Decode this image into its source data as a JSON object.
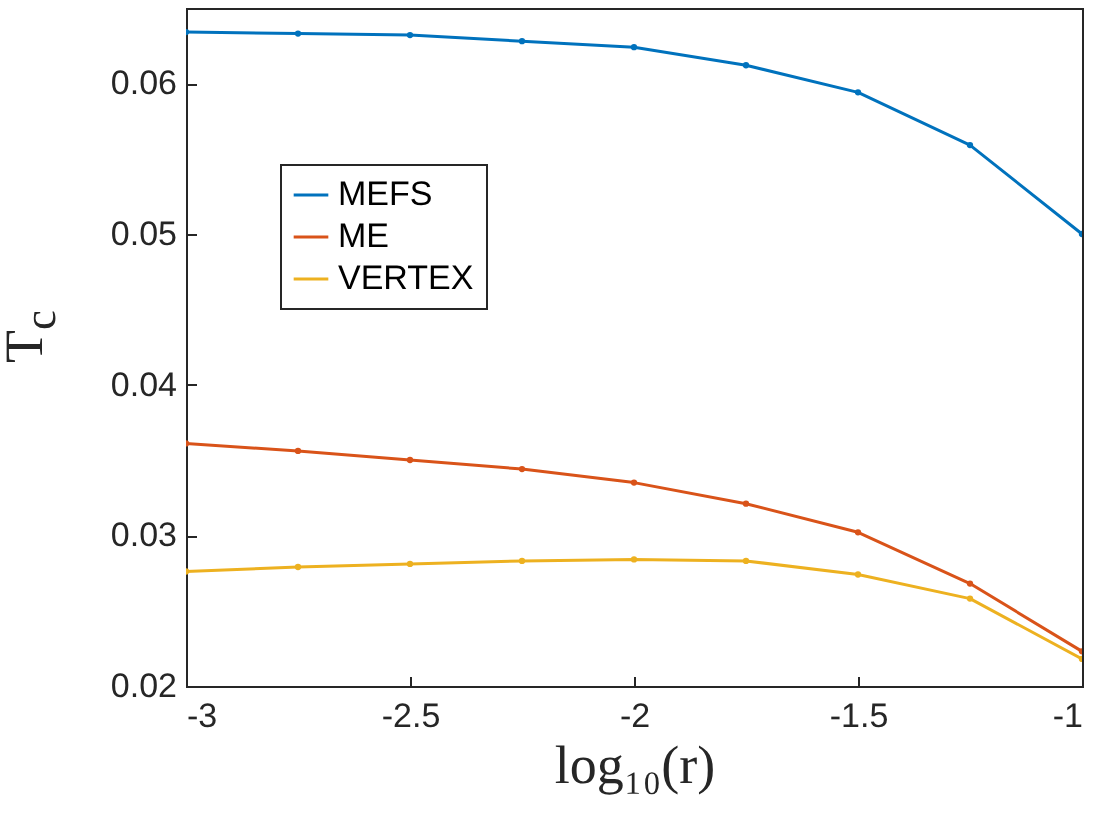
{
  "chart_data": {
    "type": "line",
    "xlabel": "log₁₀(r)",
    "ylabel": "T$_{c}$",
    "x": [
      -3,
      -2.75,
      -2.5,
      -2.25,
      -2,
      -1.75,
      -1.5,
      -1.25,
      -1
    ],
    "xlim": [
      -3,
      -1
    ],
    "xticks": [
      -3,
      -2.5,
      -2,
      -1.5,
      -1
    ],
    "ylim": [
      0.02,
      0.065
    ],
    "yticks": [
      0.02,
      0.03,
      0.04,
      0.05,
      0.06
    ],
    "series": [
      {
        "name": "MEFS",
        "color": "#0072bd",
        "values": [
          0.0634,
          0.0633,
          0.0632,
          0.0628,
          0.0624,
          0.0612,
          0.0594,
          0.0559,
          0.05
        ]
      },
      {
        "name": "ME",
        "color": "#d95319",
        "values": [
          0.0361,
          0.0356,
          0.035,
          0.0344,
          0.0335,
          0.0321,
          0.0302,
          0.0268,
          0.0223
        ]
      },
      {
        "name": "VERTEX",
        "color": "#edb120",
        "values": [
          0.0276,
          0.0279,
          0.0281,
          0.0283,
          0.0284,
          0.0283,
          0.0274,
          0.0258,
          0.0218
        ]
      }
    ],
    "legend": "top left",
    "marker": "circle",
    "line_style": "solid",
    "grid": false
  }
}
